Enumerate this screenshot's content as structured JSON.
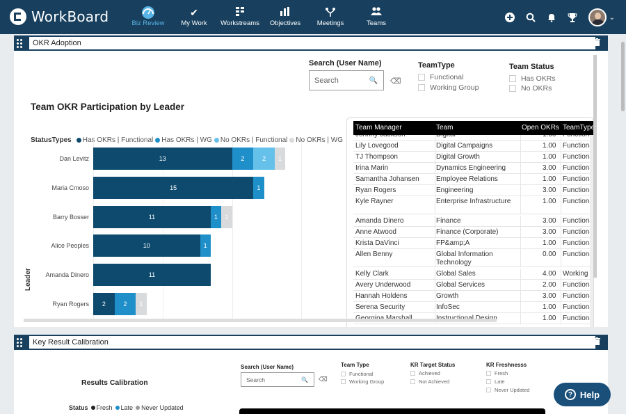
{
  "app": {
    "name": "WorkBoard"
  },
  "nav": {
    "items": [
      {
        "label": "Biz Review",
        "icon": "gauge-icon",
        "active": true
      },
      {
        "label": "My Work",
        "icon": "check-icon",
        "active": false
      },
      {
        "label": "Workstreams",
        "icon": "workstreams-icon",
        "active": false
      },
      {
        "label": "Objectives",
        "icon": "bar-chart-icon",
        "active": false
      },
      {
        "label": "Meetings",
        "icon": "meetings-icon",
        "active": false
      },
      {
        "label": "Teams",
        "icon": "people-icon",
        "active": false
      }
    ],
    "right_icons": [
      "add-icon",
      "search-icon",
      "bell-icon",
      "trophy-icon",
      "avatar",
      "chevron-down-icon"
    ]
  },
  "panel1": {
    "title": "OKR Adoption",
    "chart_title": "Team OKR Participation by Leader",
    "search": {
      "label": "Search (User Name)",
      "placeholder": "Search"
    },
    "team_type": {
      "label": "TeamType",
      "options": [
        "Functional",
        "Working Group"
      ]
    },
    "team_status": {
      "label": "Team Status",
      "options": [
        "Has OKRs",
        "No OKRs"
      ]
    },
    "legend": {
      "title": "StatusTypes",
      "entries": [
        {
          "label": "Has OKRs | Functional",
          "color": "#0d4a6e"
        },
        {
          "label": "Has OKRs | WG",
          "color": "#1f8fc9"
        },
        {
          "label": "No OKRs | Functional",
          "color": "#65c1ea"
        },
        {
          "label": "No OKRs | WG",
          "color": "#d8dadc"
        }
      ]
    },
    "y_axis_label": "Leader",
    "table": {
      "columns": [
        "Team Manager",
        "Team",
        "Open OKRs",
        "TeamType"
      ],
      "rows": [
        [
          "Johnny Jackson",
          "Digital",
          "1.00",
          "Functional"
        ],
        [
          "Lily Lovegood",
          "Digital Campaigns",
          "1.00",
          "Functional"
        ],
        [
          "TJ Thompson",
          "Digital Growth",
          "1.00",
          "Functional"
        ],
        [
          "Irina Marin",
          "Dynamics Engineering",
          "3.00",
          "Functional"
        ],
        [
          "Samantha Johansen",
          "Employee Relations",
          "1.00",
          "Functional"
        ],
        [
          "Ryan Rogers",
          "Engineering",
          "3.00",
          "Functional"
        ],
        [
          "Kyle Rayner",
          "Enterprise Infrastructure",
          "1.00",
          "Functional"
        ],
        [
          "Amanda Dinero",
          "Finance",
          "3.00",
          "Functional"
        ],
        [
          "Anne Atwood",
          "Finance (Corporate)",
          "3.00",
          "Functional"
        ],
        [
          "Krista DaVinci",
          "FP&amp;A",
          "1.00",
          "Functional"
        ],
        [
          "Allen Benny",
          "Global Information Technology",
          "0.00",
          "Functional"
        ],
        [
          "Kelly Clark",
          "Global Sales",
          "4.00",
          "Working Group"
        ],
        [
          "Avery Underwood",
          "Global Services",
          "2.00",
          "Functional"
        ],
        [
          "Hannah Holdens",
          "Growth",
          "3.00",
          "Functional"
        ],
        [
          "Serena Security",
          "InfoSec",
          "1.00",
          "Functional"
        ],
        [
          "Georgina Marshall",
          "Instructional Design",
          "1.00",
          "Functional"
        ]
      ]
    }
  },
  "chart_data": {
    "type": "bar",
    "orientation": "horizontal",
    "stacked": true,
    "title": "Team OKR Participation by Leader",
    "ylabel": "Leader",
    "categories": [
      "Dan Levitz",
      "Maria Cmoso",
      "Barry Bosser",
      "Alice Peoples",
      "Amanda Dinero",
      "Ryan Rogers"
    ],
    "series": [
      {
        "name": "Has OKRs | Functional",
        "color": "#0d4a6e",
        "values": [
          13,
          15,
          11,
          10,
          11,
          2
        ]
      },
      {
        "name": "Has OKRs | WG",
        "color": "#1f8fc9",
        "values": [
          2,
          1,
          1,
          1,
          0,
          2
        ]
      },
      {
        "name": "No OKRs | Functional",
        "color": "#65c1ea",
        "values": [
          2,
          0,
          0,
          0,
          0,
          0
        ]
      },
      {
        "name": "No OKRs | WG",
        "color": "#d8dadc",
        "values": [
          1,
          0,
          1,
          0,
          0,
          1
        ]
      }
    ]
  },
  "panel2": {
    "title": "Key Result Calibration",
    "section_title": "Results Calibration",
    "search": {
      "label": "Search (User Name)",
      "placeholder": "Search"
    },
    "team_type": {
      "label": "Team Type",
      "options": [
        "Functional",
        "Working Group"
      ]
    },
    "kr_target": {
      "label": "KR Target Status",
      "options": [
        "Achieved",
        "Not Achieved"
      ]
    },
    "kr_fresh": {
      "label": "KR Freshnesss",
      "options": [
        "Fresh",
        "Late",
        "Never Updated"
      ]
    },
    "status_legend": {
      "title": "Status",
      "entries": [
        {
          "label": "Fresh",
          "color": "#222222"
        },
        {
          "label": "Late",
          "color": "#1f8fc9"
        },
        {
          "label": "Never Updated",
          "color": "#999999"
        }
      ]
    }
  },
  "help": {
    "label": "Help"
  }
}
